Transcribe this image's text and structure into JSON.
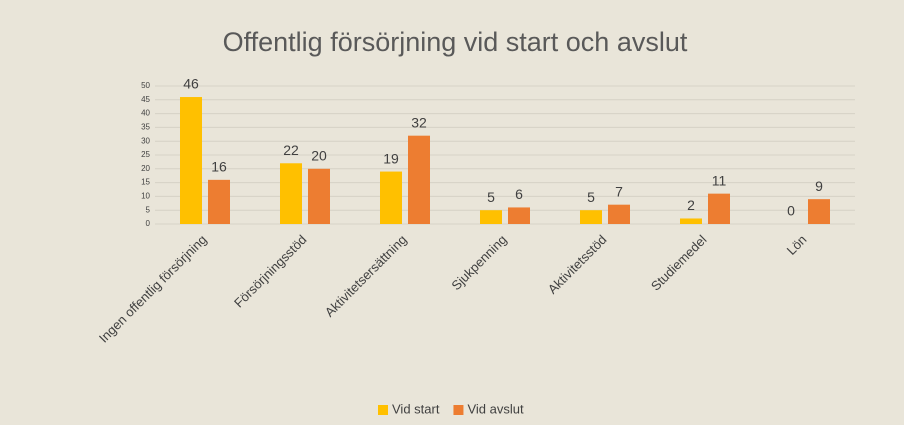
{
  "chart_data": {
    "type": "bar",
    "title": "Offentlig försörjning vid start och avslut",
    "categories": [
      "Ingen offentlig försörjning",
      "Försörjningsstöd",
      "Aktivitetsersättning",
      "Sjukpenning",
      "Aktivitetsstöd",
      "Studiemedel",
      "Lön"
    ],
    "series": [
      {
        "name": "Vid start",
        "color": "#ffc000",
        "values": [
          46,
          22,
          19,
          5,
          5,
          2,
          0
        ]
      },
      {
        "name": "Vid avslut",
        "color": "#ed7d31",
        "values": [
          16,
          20,
          32,
          6,
          7,
          11,
          9
        ]
      }
    ],
    "ylim": [
      0,
      50
    ],
    "yticks": [
      0,
      5,
      10,
      15,
      20,
      25,
      30,
      35,
      40,
      45,
      50
    ],
    "grid": true,
    "legend": "bottom"
  }
}
